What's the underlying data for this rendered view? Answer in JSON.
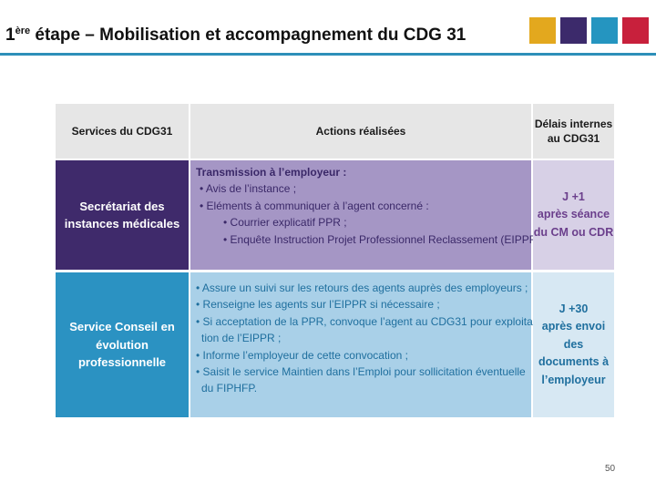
{
  "header": {
    "title_prefix": "1",
    "title_sup": "ère",
    "title_rest": " étape – Mobilisation et accompagnement du CDG 31",
    "squares": [
      "#e3a81e",
      "#3c2a6b",
      "#2595c0",
      "#c8203c"
    ]
  },
  "table": {
    "headers": [
      "Services du CDG31",
      "Actions réalisées",
      "Délais internes au CDG31"
    ],
    "rows": [
      {
        "service": "Secrétariat des instances médicales",
        "actions": [
          "Transmission à l’employeur :",
          "• Avis de l’instance ;",
          "• Eléments à communiquer à l’agent concerné :",
          "• Courrier explicatif PPR ;",
          "• Enquête Instruction Projet Professionnel Reclassement (EIPPR)."
        ],
        "delay_lines": [
          "J +1",
          "après séance",
          "du CM ou CDR"
        ]
      },
      {
        "service": "Service Conseil en évolution professionnelle",
        "actions": [
          "• Assure un suivi sur les retours des agents auprès des employeurs ;",
          "• Renseigne les agents sur l’EIPPR si nécessaire ;",
          "• Si acceptation de la PPR, convoque l’agent au CDG31 pour exploita-",
          "tion de l’EIPPR ;",
          "• Informe l’employeur de cette convocation ;",
          "• Saisit le service Maintien dans l’Emploi pour sollicitation éventuelle",
          "du FIPHFP."
        ],
        "delay_lines": [
          "J +30",
          "après envoi",
          "des",
          "documents à",
          "l’employeur"
        ]
      }
    ]
  },
  "colors": {
    "row1_service_bg": "#3f2a6b",
    "row1_actions_bg": "#a596c5",
    "row1_delay_bg": "#d7d0e6",
    "row1_actions_text": "#3a2868",
    "row1_delay_text": "#6b3f8c",
    "row2_service_bg": "#2b92c2",
    "row2_actions_bg": "#a9d0e8",
    "row2_delay_bg": "#d7e8f3",
    "row2_actions_text": "#1f6f9e",
    "row2_delay_text": "#1f6f9e"
  },
  "footer": {
    "page_number": "50"
  }
}
